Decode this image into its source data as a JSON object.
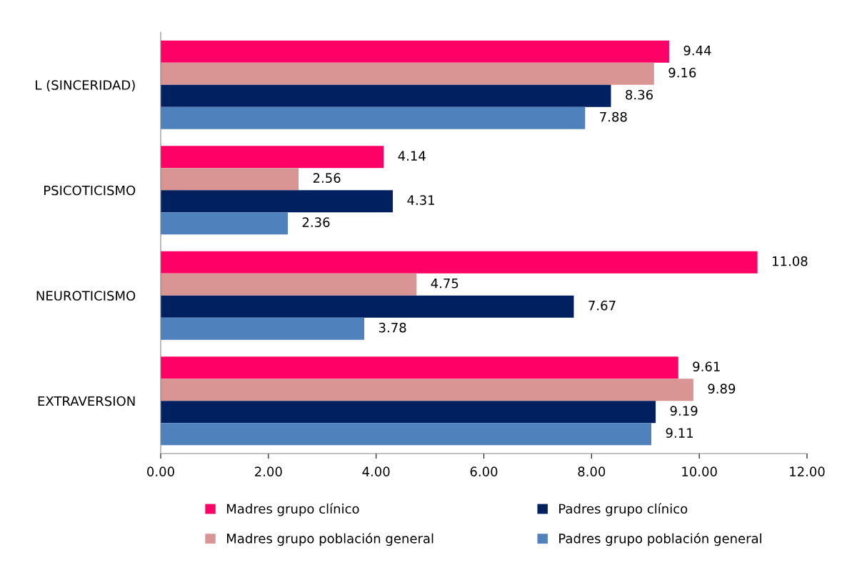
{
  "chart_data": {
    "type": "bar",
    "orientation": "horizontal",
    "categories": [
      "L (SINCERIDAD)",
      "PSICOTICISMO",
      "NEUROTICISMO",
      "EXTRAVERSION"
    ],
    "series": [
      {
        "name": "Madres grupo clínico",
        "color": "#ff0066",
        "values": [
          9.44,
          4.14,
          11.08,
          9.61
        ]
      },
      {
        "name": "Madres grupo población general",
        "color": "#d99594",
        "values": [
          9.16,
          2.56,
          4.75,
          9.89
        ]
      },
      {
        "name": "Padres grupo clínico",
        "color": "#002060",
        "values": [
          8.36,
          4.31,
          7.67,
          9.19
        ]
      },
      {
        "name": "Padres grupo población general",
        "color": "#4f81bd",
        "values": [
          7.88,
          2.36,
          3.78,
          9.11
        ]
      }
    ],
    "xlim": [
      0,
      12
    ],
    "xticks": [
      {
        "value": 0,
        "label": "0.00"
      },
      {
        "value": 2,
        "label": "2.00"
      },
      {
        "value": 4,
        "label": "4.00"
      },
      {
        "value": 6,
        "label": "6.00"
      },
      {
        "value": 8,
        "label": "8.00"
      },
      {
        "value": 10,
        "label": "10.00"
      },
      {
        "value": 12,
        "label": "12.00"
      }
    ],
    "data_labels": true,
    "grid": false,
    "legend": "bottom"
  }
}
